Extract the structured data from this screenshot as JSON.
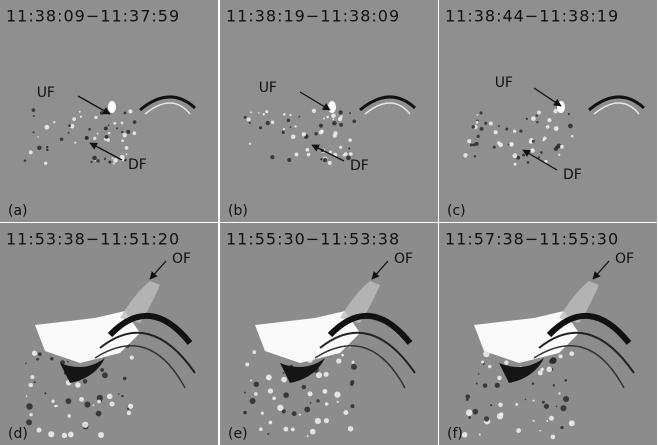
{
  "figure": {
    "panels": [
      {
        "time": "11:38:09−11:37:59",
        "label": "(a)",
        "annotations": [
          "UF",
          "DF"
        ]
      },
      {
        "time": "11:38:19−11:38:09",
        "label": "(b)",
        "annotations": [
          "UF",
          "DF"
        ]
      },
      {
        "time": "11:38:44−11:38:19",
        "label": "(c)",
        "annotations": [
          "UF",
          "DF"
        ]
      },
      {
        "time": "11:53:38−11:51:20",
        "label": "(d)",
        "annotations": [
          "OF"
        ]
      },
      {
        "time": "11:55:30−11:53:38",
        "label": "(e)",
        "annotations": [
          "OF"
        ]
      },
      {
        "time": "11:57:38−11:55:30",
        "label": "(f)",
        "annotations": [
          "OF"
        ]
      }
    ]
  }
}
